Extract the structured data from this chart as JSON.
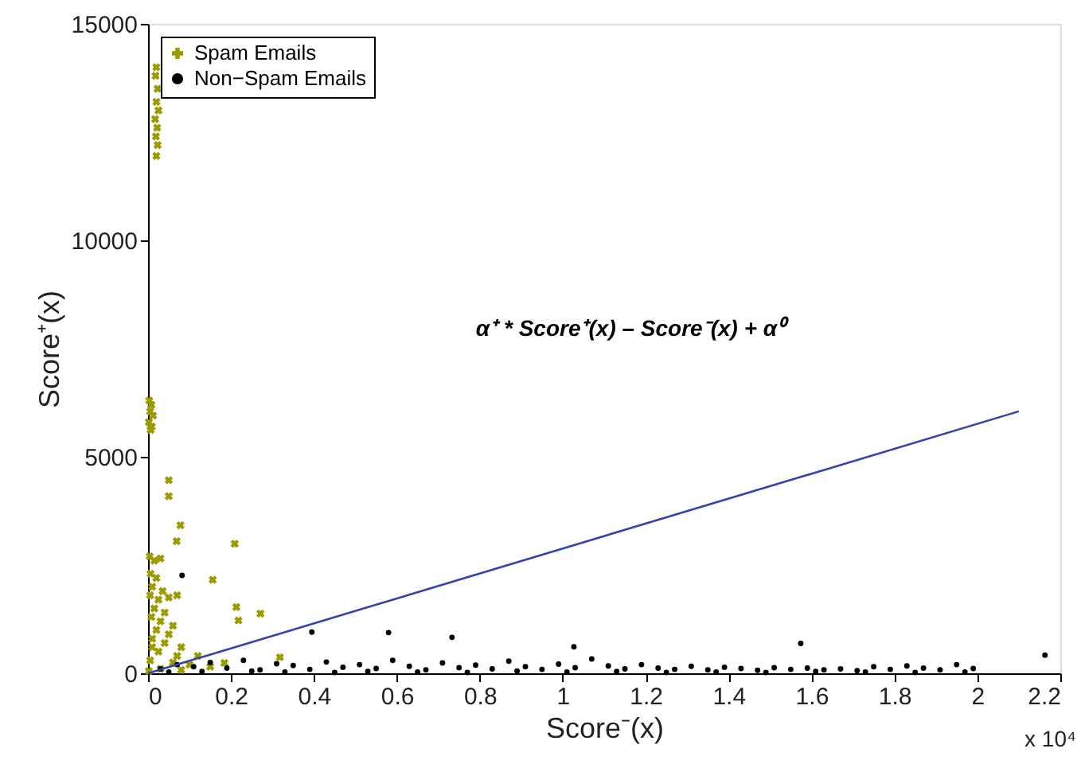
{
  "chart_data": {
    "type": "scatter",
    "xlabel": "Score⁻(x)",
    "ylabel": "Score⁺(x)",
    "xlim": [
      0,
      2.2
    ],
    "ylim": [
      0,
      15000
    ],
    "xticks": [
      0,
      0.2,
      0.4,
      0.6,
      0.8,
      1,
      1.2,
      1.4,
      1.6,
      1.8,
      2,
      2.2
    ],
    "yticks": [
      0,
      5000,
      10000,
      15000
    ],
    "grid": false,
    "legend": "top left",
    "annotations": [
      "α⁺ * Score⁺(x) – Score⁻(x) + α⁰",
      "x 10⁴"
    ],
    "series": [
      {
        "name": "Spam Emails",
        "marker": "cross",
        "color": "#9c9c00",
        "x": [
          0.02,
          0.018,
          0.023,
          0.02,
          0.025,
          0.017,
          0.022,
          0.019,
          0.023,
          0.02,
          0.003,
          0.008,
          0.005,
          0.012,
          0.002,
          0.009,
          0.006,
          0.05,
          0.05,
          0.078,
          0.069,
          0.209,
          0.156,
          0.213,
          0.218,
          0.271,
          0.318,
          0.184,
          0.004,
          0.015,
          0.03,
          0.006,
          0.02,
          0.01,
          0.035,
          0.005,
          0.025,
          0.05,
          0.015,
          0.04,
          0.07,
          0.008,
          0.03,
          0.06,
          0.02,
          0.05,
          0.01,
          0.04,
          0.08,
          0.025,
          0.12,
          0.005,
          0.06,
          0.1,
          0.15,
          0.03,
          0.08,
          0.002,
          0.01,
          0.07
        ],
        "values": [
          14000,
          13800,
          13500,
          13200,
          13000,
          12800,
          12600,
          12400,
          12200,
          11950,
          6300,
          6200,
          6050,
          5950,
          5800,
          5700,
          5620,
          4460,
          4090,
          3420,
          3050,
          2990,
          2160,
          1530,
          1220,
          1380,
          370,
          240,
          2700,
          2600,
          2650,
          2300,
          2200,
          2000,
          1900,
          1800,
          1700,
          1750,
          1500,
          1400,
          1800,
          1300,
          1200,
          1100,
          1000,
          900,
          800,
          700,
          600,
          500,
          400,
          300,
          250,
          200,
          150,
          100,
          80,
          50,
          600,
          400
        ]
      },
      {
        "name": "Non−Spam Emails",
        "marker": "circle",
        "color": "#000000",
        "x": [
          0.082,
          0.395,
          0.58,
          0.733,
          1.027,
          1.574,
          2.163,
          0.03,
          0.07,
          0.11,
          0.15,
          0.19,
          0.23,
          0.27,
          0.31,
          0.35,
          0.39,
          0.43,
          0.47,
          0.51,
          0.55,
          0.59,
          0.63,
          0.67,
          0.71,
          0.75,
          0.79,
          0.83,
          0.87,
          0.91,
          0.95,
          0.99,
          1.03,
          1.07,
          1.11,
          1.15,
          1.19,
          1.23,
          1.27,
          1.31,
          1.35,
          1.39,
          1.43,
          1.47,
          1.51,
          1.55,
          1.59,
          1.63,
          1.67,
          1.71,
          1.75,
          1.79,
          1.83,
          1.87,
          1.91,
          1.95,
          1.99,
          0.05,
          0.13,
          0.25,
          0.33,
          0.45,
          0.53,
          0.65,
          0.77,
          0.89,
          1.01,
          1.13,
          1.25,
          1.37,
          1.49,
          1.61,
          1.73,
          1.85,
          1.97
        ],
        "values": [
          2260,
          950,
          940,
          830,
          610,
          690,
          420,
          100,
          200,
          150,
          250,
          120,
          300,
          80,
          220,
          180,
          90,
          260,
          140,
          200,
          110,
          300,
          160,
          80,
          240,
          130,
          190,
          100,
          280,
          150,
          90,
          210,
          130,
          330,
          170,
          100,
          200,
          120,
          90,
          160,
          80,
          140,
          110,
          70,
          130,
          90,
          120,
          80,
          100,
          60,
          150,
          90,
          170,
          120,
          80,
          200,
          110,
          30,
          40,
          50,
          30,
          20,
          40,
          30,
          20,
          50,
          30,
          40,
          20,
          30,
          20,
          40,
          30,
          20,
          30
        ]
      },
      {
        "type": "line",
        "color": "#3344aa",
        "x": [
          0,
          2.1
        ],
        "values": [
          0,
          6050
        ]
      }
    ]
  }
}
